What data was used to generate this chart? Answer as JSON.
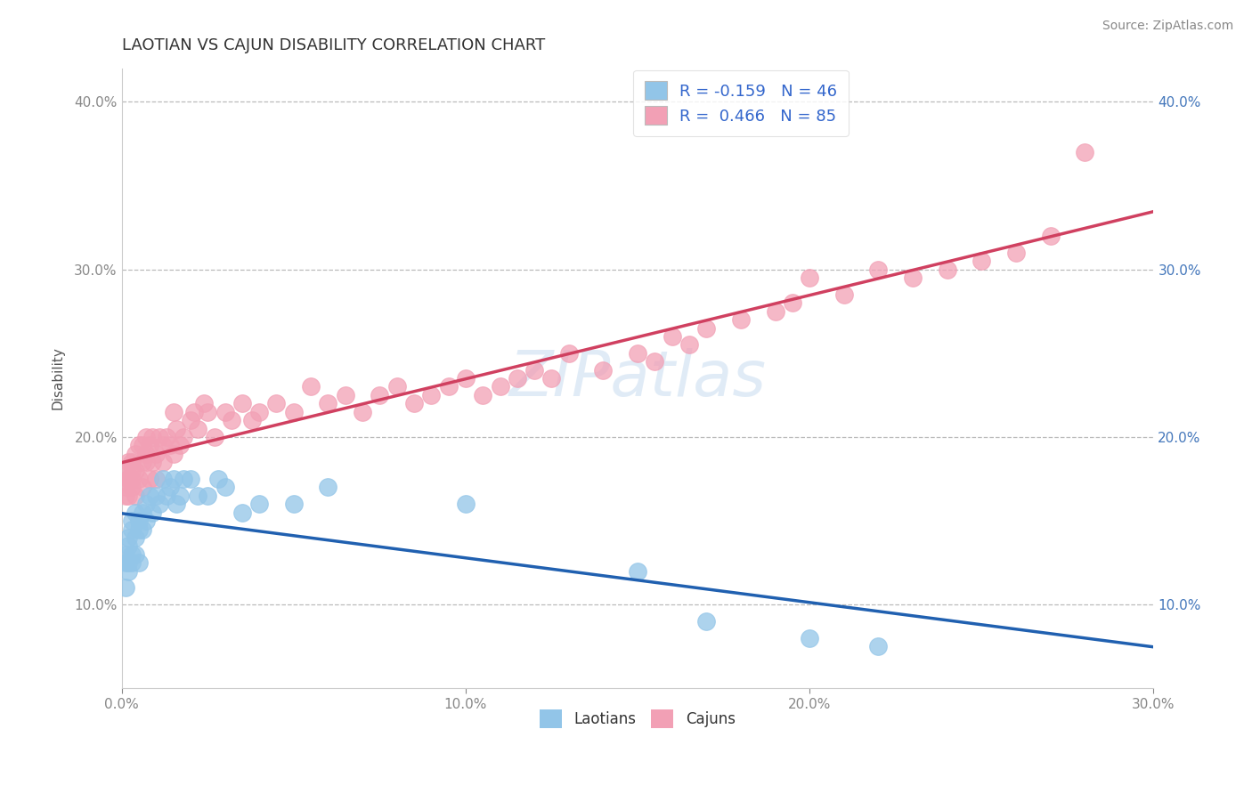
{
  "title": "LAOTIAN VS CAJUN DISABILITY CORRELATION CHART",
  "source": "Source: ZipAtlas.com",
  "ylabel": "Disability",
  "xmin": 0.0,
  "xmax": 0.3,
  "ymin": 0.05,
  "ymax": 0.42,
  "ytick_vals": [
    0.1,
    0.2,
    0.3,
    0.4
  ],
  "xtick_vals": [
    0.0,
    0.1,
    0.2,
    0.3
  ],
  "legend_labels_bottom": [
    "Laotians",
    "Cajuns"
  ],
  "blue_color": "#92C5E8",
  "pink_color": "#F2A0B5",
  "blue_line_color": "#2060B0",
  "pink_line_color": "#D04060",
  "R_blue": -0.159,
  "N_blue": 46,
  "R_pink": 0.466,
  "N_pink": 85,
  "laotian_x": [
    0.001,
    0.001,
    0.001,
    0.002,
    0.002,
    0.002,
    0.002,
    0.003,
    0.003,
    0.003,
    0.003,
    0.004,
    0.004,
    0.004,
    0.005,
    0.005,
    0.005,
    0.006,
    0.006,
    0.007,
    0.007,
    0.008,
    0.009,
    0.01,
    0.011,
    0.012,
    0.013,
    0.014,
    0.015,
    0.016,
    0.017,
    0.018,
    0.02,
    0.022,
    0.025,
    0.028,
    0.03,
    0.035,
    0.04,
    0.05,
    0.06,
    0.1,
    0.15,
    0.17,
    0.2,
    0.22
  ],
  "laotian_y": [
    0.125,
    0.13,
    0.11,
    0.135,
    0.14,
    0.125,
    0.12,
    0.145,
    0.15,
    0.13,
    0.125,
    0.14,
    0.155,
    0.13,
    0.15,
    0.145,
    0.125,
    0.155,
    0.145,
    0.16,
    0.15,
    0.165,
    0.155,
    0.165,
    0.16,
    0.175,
    0.165,
    0.17,
    0.175,
    0.16,
    0.165,
    0.175,
    0.175,
    0.165,
    0.165,
    0.175,
    0.17,
    0.155,
    0.16,
    0.16,
    0.17,
    0.16,
    0.12,
    0.09,
    0.08,
    0.075
  ],
  "cajun_x": [
    0.001,
    0.001,
    0.001,
    0.002,
    0.002,
    0.002,
    0.002,
    0.003,
    0.003,
    0.003,
    0.003,
    0.004,
    0.004,
    0.004,
    0.005,
    0.005,
    0.006,
    0.006,
    0.006,
    0.007,
    0.007,
    0.007,
    0.008,
    0.008,
    0.009,
    0.009,
    0.01,
    0.01,
    0.011,
    0.012,
    0.012,
    0.013,
    0.014,
    0.015,
    0.015,
    0.016,
    0.017,
    0.018,
    0.02,
    0.021,
    0.022,
    0.024,
    0.025,
    0.027,
    0.03,
    0.032,
    0.035,
    0.038,
    0.04,
    0.045,
    0.05,
    0.055,
    0.06,
    0.065,
    0.07,
    0.075,
    0.08,
    0.085,
    0.09,
    0.095,
    0.1,
    0.105,
    0.11,
    0.115,
    0.12,
    0.125,
    0.13,
    0.14,
    0.15,
    0.155,
    0.16,
    0.165,
    0.17,
    0.18,
    0.19,
    0.195,
    0.2,
    0.21,
    0.22,
    0.23,
    0.24,
    0.25,
    0.26,
    0.27,
    0.28
  ],
  "cajun_y": [
    0.17,
    0.165,
    0.18,
    0.175,
    0.185,
    0.165,
    0.175,
    0.17,
    0.18,
    0.185,
    0.175,
    0.165,
    0.19,
    0.18,
    0.195,
    0.175,
    0.185,
    0.195,
    0.17,
    0.19,
    0.185,
    0.2,
    0.175,
    0.195,
    0.185,
    0.2,
    0.19,
    0.175,
    0.2,
    0.195,
    0.185,
    0.2,
    0.195,
    0.19,
    0.215,
    0.205,
    0.195,
    0.2,
    0.21,
    0.215,
    0.205,
    0.22,
    0.215,
    0.2,
    0.215,
    0.21,
    0.22,
    0.21,
    0.215,
    0.22,
    0.215,
    0.23,
    0.22,
    0.225,
    0.215,
    0.225,
    0.23,
    0.22,
    0.225,
    0.23,
    0.235,
    0.225,
    0.23,
    0.235,
    0.24,
    0.235,
    0.25,
    0.24,
    0.25,
    0.245,
    0.26,
    0.255,
    0.265,
    0.27,
    0.275,
    0.28,
    0.295,
    0.285,
    0.3,
    0.295,
    0.3,
    0.305,
    0.31,
    0.32,
    0.37
  ]
}
